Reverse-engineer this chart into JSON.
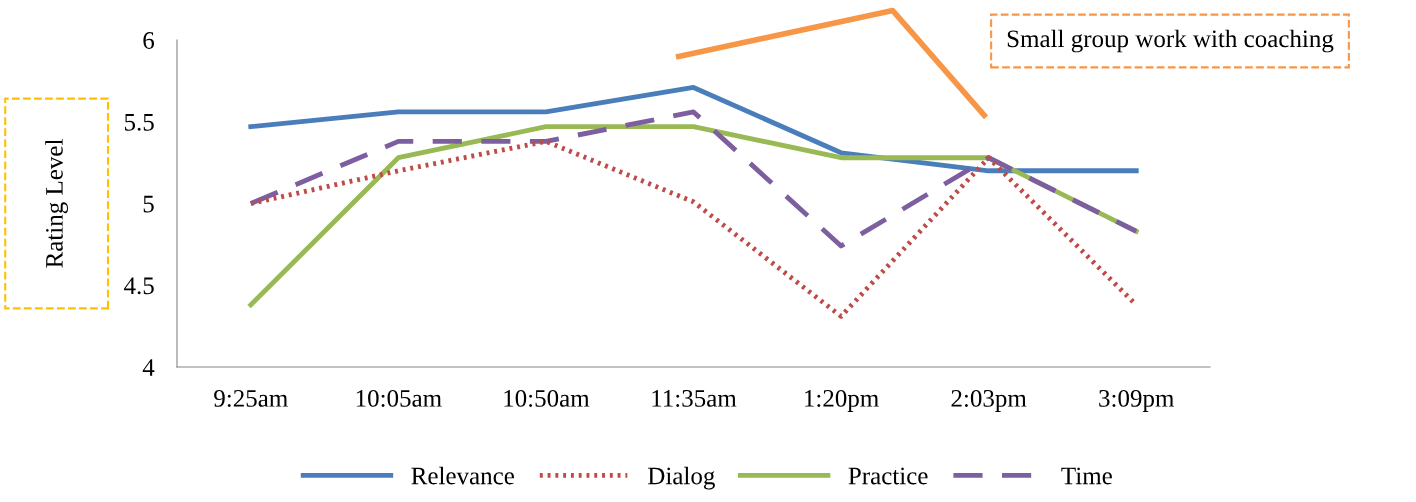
{
  "chart_data": {
    "type": "line",
    "ylabel": "Rating Level",
    "categories": [
      "9:25am",
      "10:05am",
      "10:50am",
      "11:35am",
      "1:20pm",
      "2:03pm",
      "3:09pm"
    ],
    "series": [
      {
        "name": "Relevance",
        "color": "#4a7ebb",
        "line_style": "solid",
        "values": [
          5.47,
          5.56,
          5.56,
          5.71,
          5.31,
          5.2,
          5.2
        ]
      },
      {
        "name": "Dialog",
        "color": "#be4b48",
        "line_style": "dotted",
        "values": [
          5.0,
          5.2,
          5.38,
          5.01,
          4.31,
          5.28,
          4.38
        ]
      },
      {
        "name": "Practice",
        "color": "#98b954",
        "line_style": "solid",
        "values": [
          4.38,
          5.28,
          5.47,
          5.47,
          5.28,
          5.28,
          4.83
        ]
      },
      {
        "name": "Time",
        "color": "#7d5fa0",
        "line_style": "dashed",
        "values": [
          5.0,
          5.38,
          5.38,
          5.56,
          4.74,
          5.28,
          4.83
        ]
      }
    ],
    "ylim": [
      4,
      6
    ],
    "yticks": [
      4,
      4.5,
      5,
      5.5,
      6
    ],
    "annotations": [
      "Small group work with coaching"
    ],
    "legend": "bottom",
    "grid": false,
    "marker": "none"
  }
}
